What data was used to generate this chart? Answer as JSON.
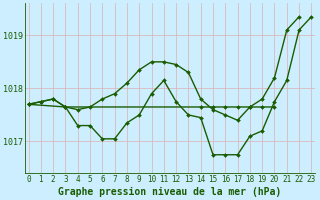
{
  "title": "Graphe pression niveau de la mer (hPa)",
  "hours": [
    0,
    1,
    2,
    3,
    4,
    5,
    6,
    7,
    8,
    9,
    10,
    11,
    12,
    13,
    14,
    15,
    16,
    17,
    18,
    19,
    20,
    21,
    22,
    23
  ],
  "yticks": [
    1017,
    1018,
    1019
  ],
  "ylim": [
    1016.4,
    1019.6
  ],
  "xlim": [
    -0.3,
    23.3
  ],
  "background_color": "#cceeff",
  "grid_color": "#ddb0b0",
  "line_color": "#1a5c00",
  "series": [
    {
      "x": [
        0,
        1,
        2,
        3,
        4,
        5,
        6,
        7,
        8,
        9,
        10,
        11,
        12,
        13,
        14,
        15,
        16,
        17,
        18,
        19,
        20,
        21,
        22,
        23
      ],
      "y": [
        1017.7,
        1017.75,
        1017.8,
        1017.65,
        1017.3,
        1017.3,
        1017.05,
        1017.05,
        1017.35,
        1017.5,
        1017.9,
        1018.15,
        1017.75,
        1017.5,
        1017.45,
        1016.75,
        1016.75,
        1016.75,
        1017.1,
        1017.2,
        1017.75,
        1018.15,
        1019.1,
        1019.35
      ],
      "lw": 1.0
    },
    {
      "x": [
        0,
        1,
        2,
        3,
        4,
        5,
        6,
        7,
        8,
        9,
        10,
        11,
        12,
        13,
        14,
        15,
        16,
        17,
        18,
        19,
        20,
        21,
        22
      ],
      "y": [
        1017.7,
        1017.75,
        1017.8,
        1017.65,
        1017.6,
        1017.65,
        1017.8,
        1017.9,
        1018.1,
        1018.35,
        1018.5,
        1018.5,
        1018.45,
        1018.3,
        1017.8,
        1017.6,
        1017.5,
        1017.4,
        1017.65,
        1017.8,
        1018.2,
        1019.1,
        1019.35
      ],
      "lw": 1.0
    },
    {
      "x": [
        0,
        3,
        14,
        15,
        16,
        17,
        18,
        19,
        20
      ],
      "y": [
        1017.7,
        1017.65,
        1017.65,
        1017.65,
        1017.65,
        1017.65,
        1017.65,
        1017.65,
        1017.65
      ],
      "lw": 1.0
    }
  ],
  "marker": "D",
  "marker_size": 2.0,
  "title_fontsize": 7,
  "tick_fontsize": 5.5
}
